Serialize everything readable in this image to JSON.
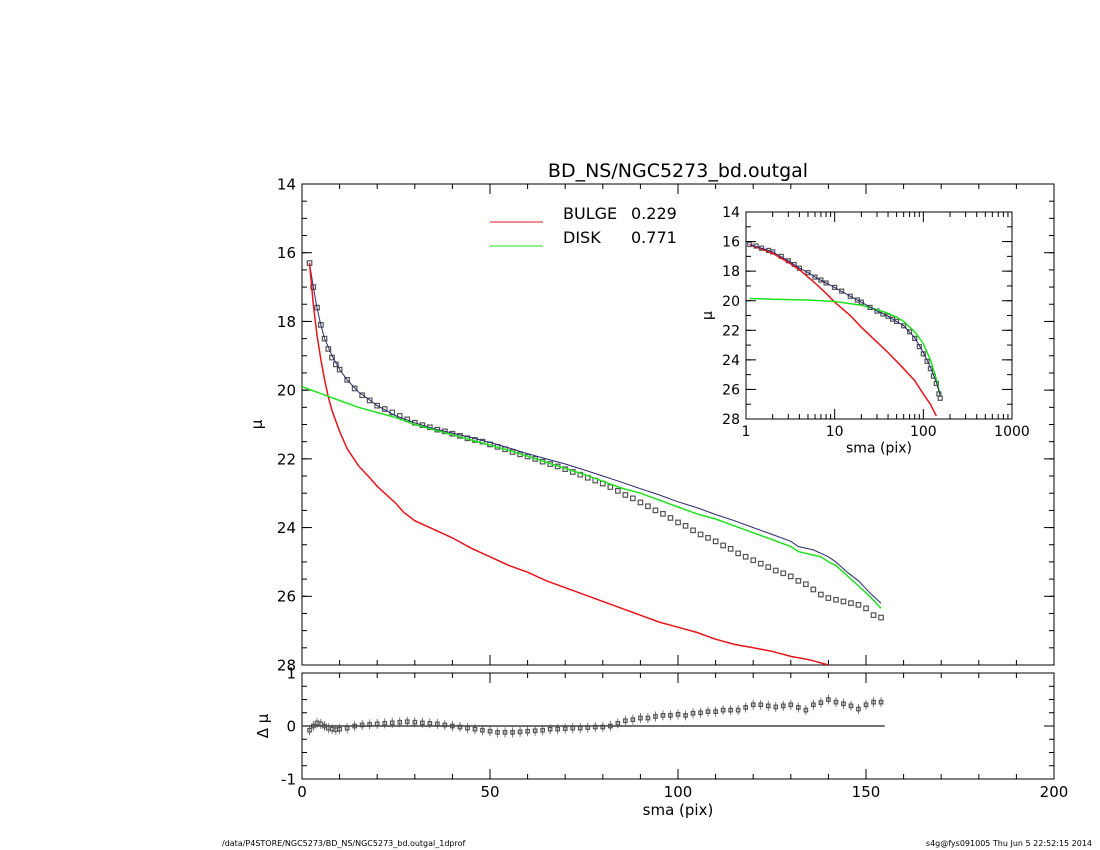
{
  "chart_data": [
    {
      "id": "main",
      "type": "line",
      "title": "BD_NS/NGC5273_bd.outgal",
      "xlabel": "",
      "ylabel": "μ",
      "xlim": [
        0,
        200
      ],
      "ylim": [
        28,
        14
      ],
      "y_inverted": true,
      "yticks": [
        14,
        16,
        18,
        20,
        22,
        24,
        26,
        28
      ],
      "legend": [
        {
          "name": "BULGE",
          "value": "0.229",
          "color": "#e8141a"
        },
        {
          "name": "DISK",
          "value": "0.771",
          "color": "#1ee21e"
        }
      ],
      "series": [
        {
          "name": "data",
          "style": "squares",
          "color": "#555555",
          "x": [
            2,
            3,
            4,
            5,
            6,
            7,
            8,
            9,
            10,
            12,
            14,
            16,
            18,
            20,
            22,
            24,
            26,
            28,
            30,
            32,
            34,
            36,
            38,
            40,
            42,
            44,
            46,
            48,
            50,
            52,
            54,
            56,
            58,
            60,
            62,
            64,
            66,
            68,
            70,
            72,
            74,
            76,
            78,
            80,
            82,
            84,
            86,
            88,
            90,
            92,
            94,
            96,
            98,
            100,
            102,
            104,
            106,
            108,
            110,
            112,
            114,
            116,
            118,
            120,
            122,
            124,
            126,
            128,
            130,
            132,
            134,
            136,
            138,
            140,
            142,
            144,
            146,
            148,
            150,
            152,
            154
          ],
          "y": [
            16.3,
            17.0,
            17.6,
            18.1,
            18.5,
            18.8,
            19.05,
            19.25,
            19.4,
            19.7,
            19.95,
            20.15,
            20.3,
            20.45,
            20.55,
            20.65,
            20.75,
            20.85,
            20.95,
            21.02,
            21.08,
            21.15,
            21.2,
            21.27,
            21.33,
            21.4,
            21.45,
            21.5,
            21.58,
            21.65,
            21.72,
            21.8,
            21.87,
            21.93,
            22.0,
            22.08,
            22.15,
            22.22,
            22.3,
            22.38,
            22.46,
            22.55,
            22.63,
            22.72,
            22.82,
            22.93,
            23.05,
            23.15,
            23.27,
            23.38,
            23.5,
            23.6,
            23.72,
            23.85,
            23.95,
            24.08,
            24.2,
            24.3,
            24.4,
            24.52,
            24.62,
            24.75,
            24.85,
            24.95,
            25.05,
            25.15,
            25.25,
            25.33,
            25.42,
            25.55,
            25.65,
            25.8,
            25.95,
            26.05,
            26.1,
            26.15,
            26.2,
            26.25,
            26.35,
            26.55,
            26.62
          ]
        },
        {
          "name": "model",
          "style": "line",
          "color": "#2a2a6a",
          "x": [
            2,
            3,
            4,
            5,
            6,
            8,
            10,
            12,
            15,
            20,
            25,
            30,
            35,
            40,
            45,
            50,
            55,
            60,
            65,
            70,
            75,
            80,
            85,
            90,
            95,
            100,
            105,
            110,
            115,
            120,
            125,
            130,
            132,
            134,
            136,
            138,
            140,
            142,
            145,
            148,
            151,
            154
          ],
          "y": [
            16.3,
            17.0,
            17.6,
            18.1,
            18.5,
            19.0,
            19.4,
            19.7,
            20.05,
            20.45,
            20.75,
            20.95,
            21.12,
            21.25,
            21.38,
            21.52,
            21.68,
            21.85,
            22.0,
            22.15,
            22.32,
            22.5,
            22.68,
            22.87,
            23.05,
            23.25,
            23.42,
            23.62,
            23.8,
            24.0,
            24.2,
            24.4,
            24.55,
            24.6,
            24.65,
            24.75,
            24.85,
            25.0,
            25.3,
            25.55,
            25.9,
            26.2
          ]
        },
        {
          "name": "BULGE",
          "style": "line",
          "color": "#e8141a",
          "x": [
            2,
            3,
            4,
            5,
            6,
            7,
            8,
            10,
            12,
            15,
            18,
            20,
            22,
            25,
            27,
            30,
            35,
            40,
            45,
            50,
            55,
            60,
            65,
            70,
            75,
            80,
            85,
            90,
            95,
            100,
            105,
            110,
            115,
            120,
            125,
            130,
            135,
            140
          ],
          "y": [
            16.3,
            17.5,
            18.4,
            19.1,
            19.7,
            20.2,
            20.6,
            21.2,
            21.7,
            22.2,
            22.55,
            22.8,
            23.0,
            23.3,
            23.55,
            23.8,
            24.05,
            24.3,
            24.6,
            24.85,
            25.1,
            25.3,
            25.55,
            25.75,
            25.95,
            26.15,
            26.35,
            26.55,
            26.75,
            26.9,
            27.05,
            27.25,
            27.4,
            27.5,
            27.6,
            27.75,
            27.85,
            28.0
          ]
        },
        {
          "name": "DISK",
          "style": "line",
          "color": "#1ee21e",
          "x": [
            0,
            5,
            10,
            15,
            20,
            25,
            30,
            35,
            40,
            45,
            50,
            55,
            60,
            65,
            70,
            75,
            80,
            85,
            90,
            95,
            100,
            105,
            110,
            115,
            120,
            125,
            130,
            132,
            134,
            136,
            138,
            140,
            142,
            145,
            148,
            151,
            154
          ],
          "y": [
            19.9,
            20.1,
            20.3,
            20.5,
            20.65,
            20.8,
            21.0,
            21.15,
            21.3,
            21.45,
            21.6,
            21.75,
            21.92,
            22.1,
            22.28,
            22.45,
            22.65,
            22.85,
            23.0,
            23.2,
            23.4,
            23.6,
            23.75,
            23.95,
            24.15,
            24.35,
            24.55,
            24.7,
            24.75,
            24.8,
            24.85,
            25.0,
            25.1,
            25.4,
            25.7,
            26.0,
            26.35
          ]
        }
      ]
    },
    {
      "id": "residual",
      "type": "scatter",
      "xlabel": "sma (pix)",
      "ylabel": "Δ μ",
      "xlim": [
        0,
        200
      ],
      "ylim": [
        -1,
        1
      ],
      "xticks": [
        0,
        50,
        100,
        150,
        200
      ],
      "yticks": [
        -1,
        0,
        1
      ],
      "series": [
        {
          "name": "residual",
          "style": "squares",
          "color": "#555555",
          "x": [
            2,
            3,
            4,
            5,
            6,
            7,
            8,
            9,
            10,
            12,
            14,
            16,
            18,
            20,
            22,
            24,
            26,
            28,
            30,
            32,
            34,
            36,
            38,
            40,
            42,
            44,
            46,
            48,
            50,
            52,
            54,
            56,
            58,
            60,
            62,
            64,
            66,
            68,
            70,
            72,
            74,
            76,
            78,
            80,
            82,
            84,
            86,
            88,
            90,
            92,
            94,
            96,
            98,
            100,
            102,
            104,
            106,
            108,
            110,
            112,
            114,
            116,
            118,
            120,
            122,
            124,
            126,
            128,
            130,
            132,
            134,
            136,
            138,
            140,
            142,
            144,
            146,
            148,
            150,
            152,
            154
          ],
          "y": [
            -0.08,
            0.0,
            0.06,
            0.04,
            0.0,
            -0.04,
            -0.06,
            -0.07,
            -0.06,
            -0.04,
            0.0,
            0.02,
            0.03,
            0.04,
            0.05,
            0.06,
            0.07,
            0.08,
            0.07,
            0.06,
            0.05,
            0.04,
            0.02,
            0.0,
            -0.02,
            -0.04,
            -0.06,
            -0.08,
            -0.1,
            -0.12,
            -0.12,
            -0.12,
            -0.11,
            -0.1,
            -0.09,
            -0.08,
            -0.06,
            -0.06,
            -0.05,
            -0.04,
            -0.04,
            -0.03,
            -0.02,
            -0.02,
            0.0,
            0.05,
            0.1,
            0.12,
            0.15,
            0.15,
            0.18,
            0.2,
            0.2,
            0.22,
            0.2,
            0.24,
            0.25,
            0.27,
            0.27,
            0.3,
            0.3,
            0.3,
            0.35,
            0.4,
            0.4,
            0.38,
            0.36,
            0.38,
            0.4,
            0.35,
            0.3,
            0.4,
            0.44,
            0.5,
            0.45,
            0.42,
            0.38,
            0.32,
            0.4,
            0.45,
            0.45
          ]
        },
        {
          "name": "zero",
          "style": "line",
          "color": "#444444",
          "x": [
            0,
            155
          ],
          "y": [
            0,
            0
          ]
        }
      ]
    },
    {
      "id": "inset",
      "type": "line",
      "xlabel": "sma (pix)",
      "ylabel": "μ",
      "xscale": "log",
      "xlim": [
        1,
        1000
      ],
      "ylim": [
        28,
        14
      ],
      "y_inverted": true,
      "xticks": [
        1,
        10,
        100,
        1000
      ],
      "yticks": [
        14,
        16,
        18,
        20,
        22,
        24,
        26,
        28
      ],
      "series": [
        {
          "name": "data",
          "style": "squares",
          "color": "#555555",
          "x": [
            1.1,
            1.3,
            1.5,
            1.8,
            2,
            2.5,
            3,
            3.5,
            4,
            5,
            6,
            7,
            8,
            10,
            12,
            15,
            18,
            20,
            25,
            30,
            35,
            40,
            45,
            50,
            60,
            70,
            80,
            90,
            100,
            110,
            120,
            130,
            140,
            150,
            155
          ],
          "y": [
            16.2,
            16.3,
            16.45,
            16.6,
            16.7,
            17.0,
            17.3,
            17.55,
            17.8,
            18.1,
            18.4,
            18.6,
            18.8,
            19.1,
            19.35,
            19.7,
            19.95,
            20.1,
            20.45,
            20.7,
            20.9,
            21.05,
            21.25,
            21.4,
            21.7,
            22.1,
            22.55,
            23.1,
            23.6,
            24.1,
            24.6,
            25.1,
            25.6,
            26.3,
            26.6
          ]
        },
        {
          "name": "BULGE",
          "style": "line",
          "color": "#e8141a",
          "x": [
            1.1,
            1.5,
            2,
            3,
            4,
            5,
            6,
            8,
            10,
            15,
            20,
            30,
            40,
            50,
            60,
            80,
            100,
            120,
            140
          ],
          "y": [
            16.2,
            16.5,
            16.8,
            17.4,
            17.9,
            18.4,
            18.8,
            19.5,
            20.1,
            21.0,
            21.8,
            22.8,
            23.5,
            24.1,
            24.6,
            25.4,
            26.3,
            27.0,
            27.8
          ]
        },
        {
          "name": "DISK",
          "style": "line",
          "color": "#1ee21e",
          "x": [
            1.1,
            2,
            5,
            10,
            20,
            30,
            40,
            50,
            60,
            80,
            100,
            120,
            140,
            155
          ],
          "y": [
            19.85,
            19.9,
            19.95,
            20.05,
            20.3,
            20.6,
            20.85,
            21.1,
            21.4,
            22.1,
            22.9,
            24.0,
            25.3,
            26.4
          ]
        },
        {
          "name": "model",
          "style": "line",
          "color": "#2a2a6a",
          "x": [
            1.1,
            1.5,
            2,
            3,
            4,
            5,
            6,
            8,
            10,
            15,
            20,
            30,
            40,
            50,
            60,
            80,
            100,
            120,
            140,
            155
          ],
          "y": [
            16.2,
            16.45,
            16.7,
            17.3,
            17.8,
            18.1,
            18.4,
            18.8,
            19.1,
            19.7,
            20.1,
            20.7,
            21.05,
            21.4,
            21.7,
            22.5,
            23.5,
            24.5,
            25.5,
            26.4
          ]
        }
      ]
    }
  ],
  "footer": {
    "left": "/data/P4STORE/NGC5273/BD_NS/NGC5273_bd.outgal_1dprof",
    "right": "s4g@fys091005  Thu Jun  5 22:52:15 2014"
  }
}
